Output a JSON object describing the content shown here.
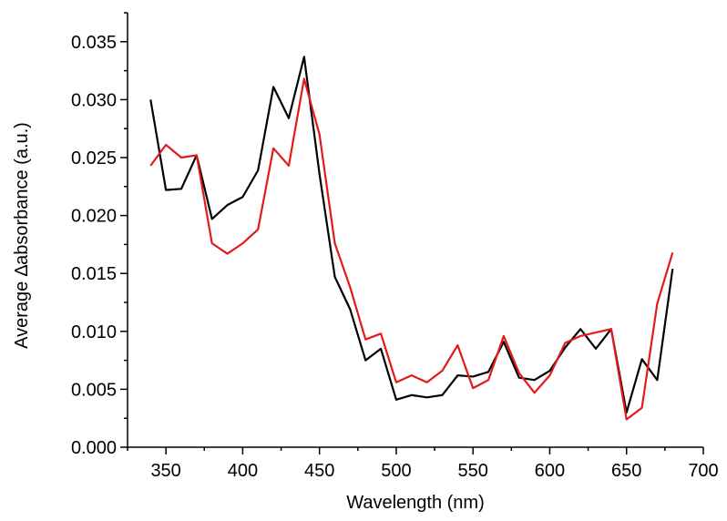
{
  "chart_data": {
    "type": "line",
    "xlabel": "Wavelength (nm)",
    "ylabel": "Average ∆absorbance (a.u.)",
    "xlim": [
      325,
      700
    ],
    "ylim": [
      0,
      0.0375
    ],
    "x_ticks": [
      350,
      400,
      450,
      500,
      550,
      600,
      650,
      700
    ],
    "x_tick_labels": [
      "350",
      "400",
      "450",
      "500",
      "550",
      "600",
      "650",
      "700"
    ],
    "y_ticks": [
      0,
      0.005,
      0.01,
      0.015,
      0.02,
      0.025,
      0.03,
      0.035
    ],
    "y_tick_labels": [
      "0.000",
      "0.005",
      "0.010",
      "0.015",
      "0.020",
      "0.025",
      "0.030",
      "0.035"
    ],
    "x_minor_step": 25,
    "y_minor_step": 0.0025,
    "grid": false,
    "x": [
      340,
      350,
      360,
      370,
      380,
      390,
      400,
      410,
      420,
      430,
      440,
      450,
      460,
      470,
      480,
      490,
      500,
      510,
      520,
      530,
      540,
      550,
      560,
      570,
      580,
      590,
      600,
      610,
      620,
      630,
      640,
      650,
      660,
      670,
      680
    ],
    "series": [
      {
        "color": "#000000",
        "values": [
          0.03,
          0.0222,
          0.0223,
          0.0252,
          0.0197,
          0.0209,
          0.0216,
          0.0239,
          0.0311,
          0.0284,
          0.0337,
          0.0236,
          0.0147,
          0.0119,
          0.0075,
          0.0085,
          0.0041,
          0.0045,
          0.0043,
          0.0045,
          0.0062,
          0.0061,
          0.0065,
          0.0091,
          0.006,
          0.0058,
          0.0066,
          0.0086,
          0.0102,
          0.0085,
          0.0102,
          0.003,
          0.0076,
          0.0058,
          0.0154
        ]
      },
      {
        "color": "#e31a1a",
        "values": [
          0.0243,
          0.0261,
          0.025,
          0.0252,
          0.0176,
          0.0167,
          0.0176,
          0.0188,
          0.0258,
          0.0243,
          0.0318,
          0.027,
          0.0176,
          0.0138,
          0.0093,
          0.0098,
          0.0056,
          0.0062,
          0.0056,
          0.0066,
          0.0088,
          0.0051,
          0.0058,
          0.0096,
          0.0064,
          0.0047,
          0.0062,
          0.009,
          0.0096,
          0.0099,
          0.0102,
          0.0024,
          0.0034,
          0.0124,
          0.0168
        ]
      }
    ]
  }
}
